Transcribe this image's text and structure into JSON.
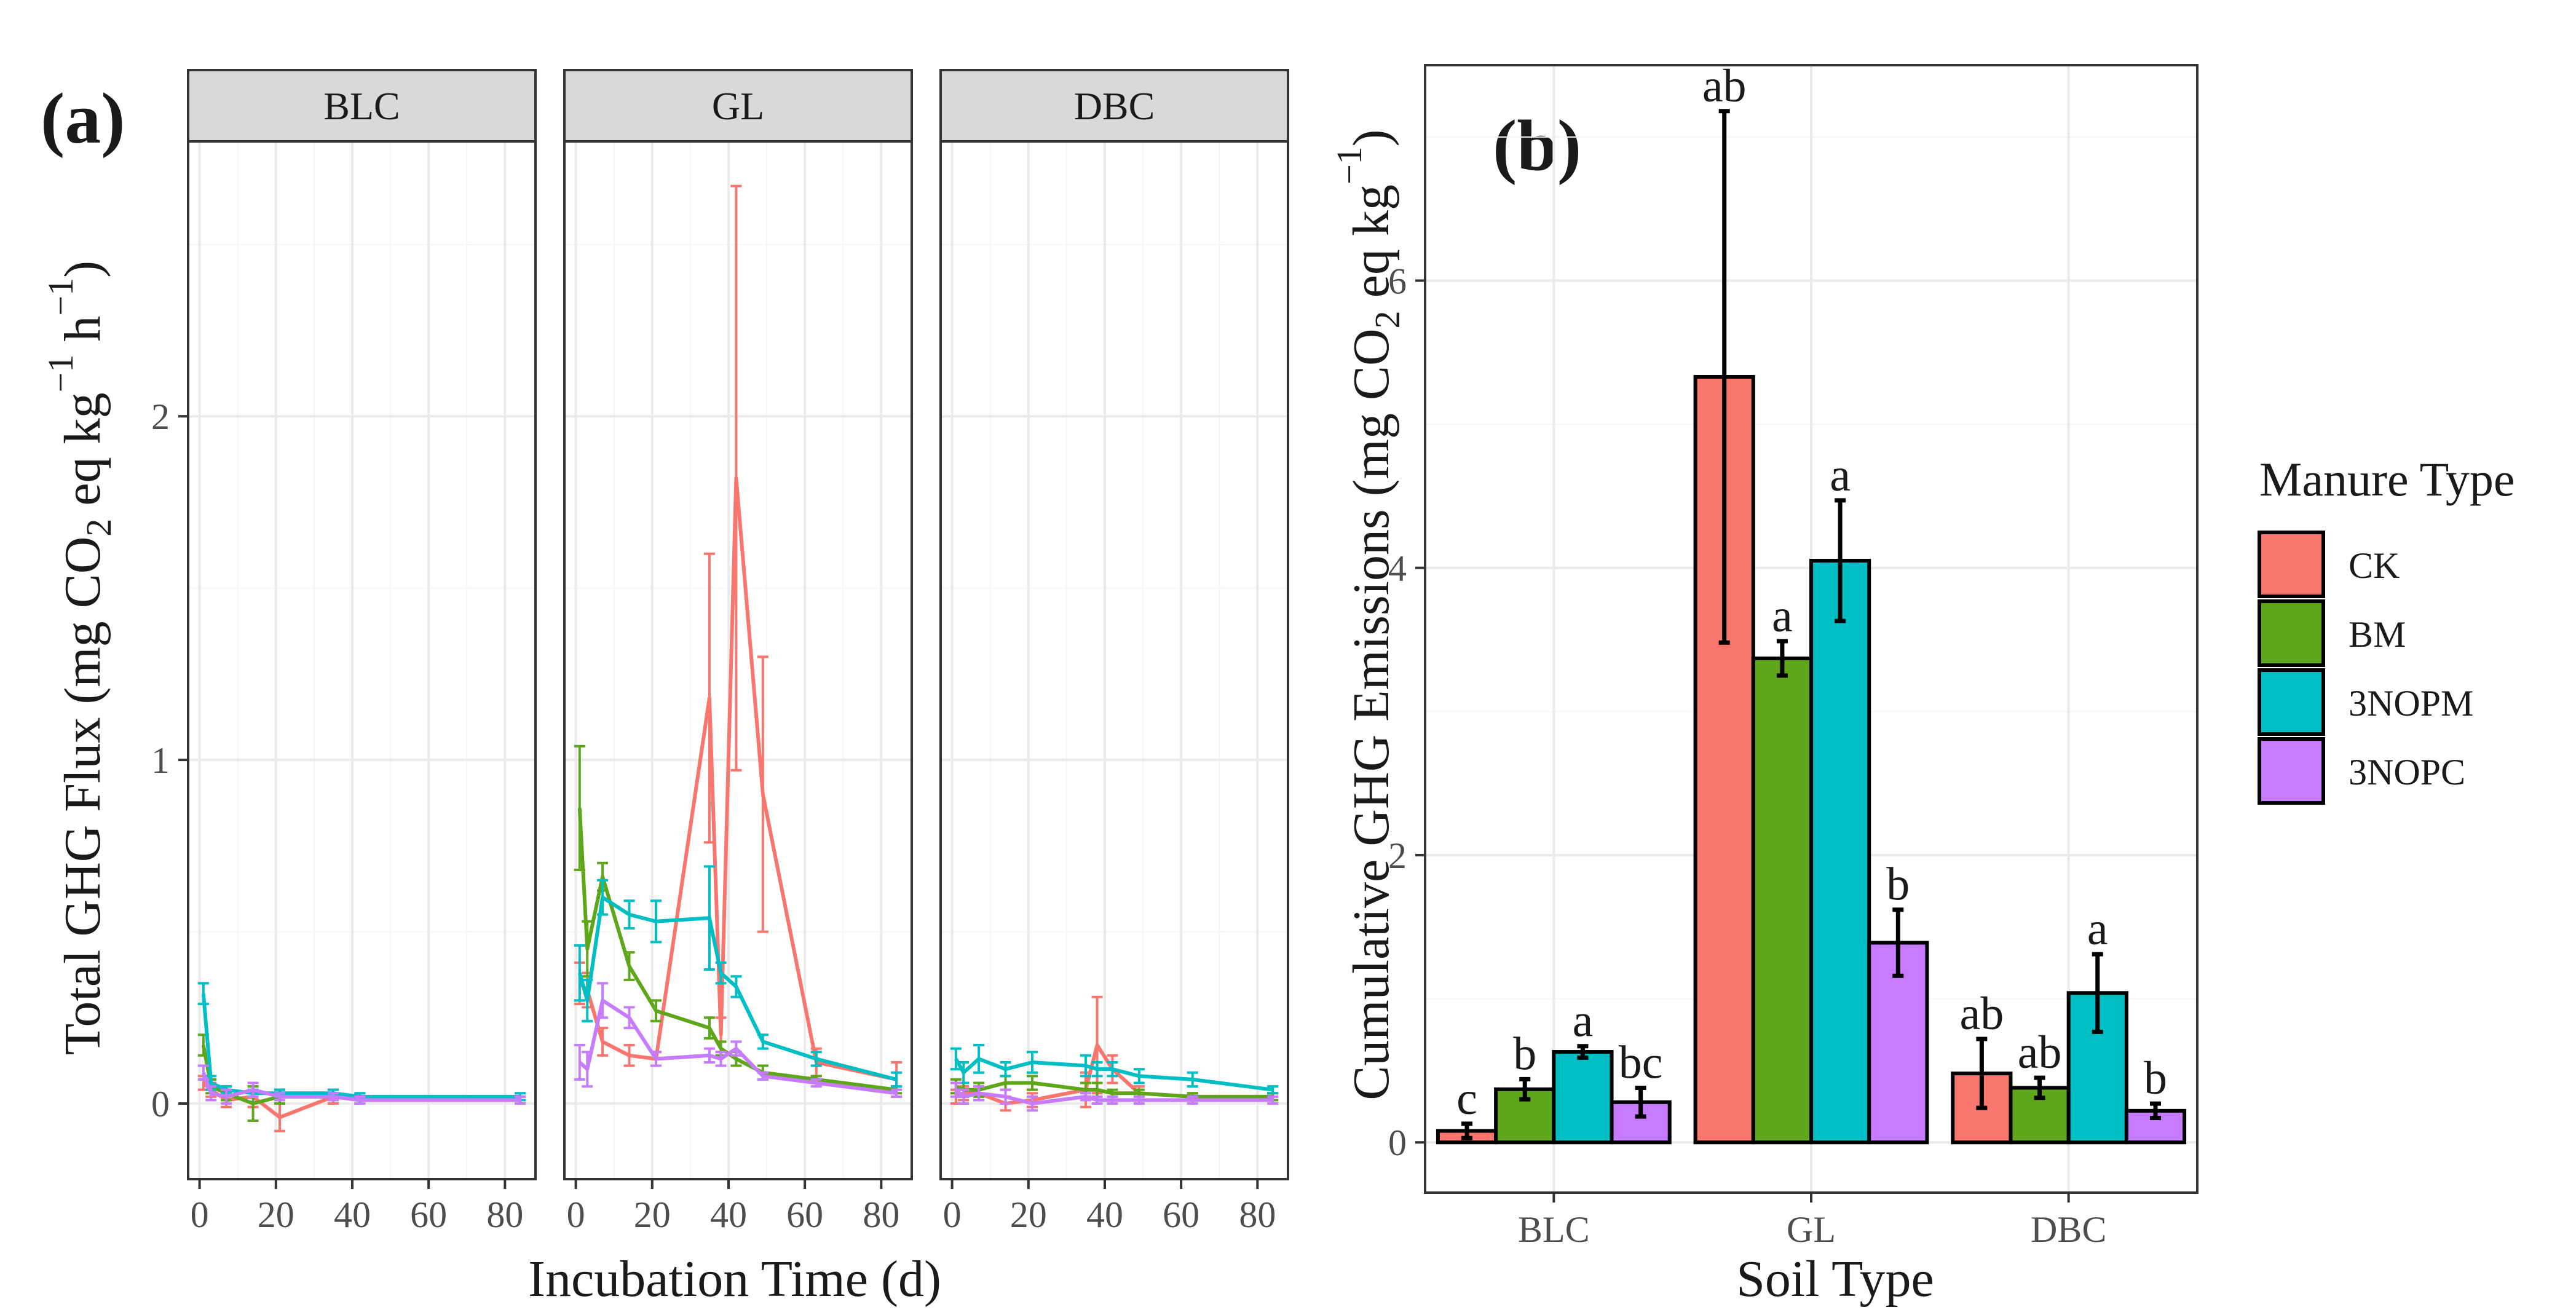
{
  "figure": {
    "panel_a_label": "(a)",
    "panel_b_label": "(b)"
  },
  "colors": {
    "CK": "#f8766d",
    "BM": "#5ea61a",
    "3NOPM": "#00bfc4",
    "3NOPC": "#c77cff"
  },
  "chart_data": [
    {
      "type": "line",
      "panel": "(a)",
      "title": "",
      "xlabel": "Incubation Time (d)",
      "ylabel_parts": [
        "Total GHG Flux (mg CO",
        "2",
        " eq kg",
        "−1",
        " h",
        "−1",
        ")"
      ],
      "xlim": [
        -3,
        88
      ],
      "ylim": [
        -0.22,
        2.8
      ],
      "x_ticks": [
        0,
        20,
        40,
        60,
        80
      ],
      "y_ticks": [
        0,
        1,
        2
      ],
      "facets": [
        "BLC",
        "GL",
        "DBC"
      ],
      "series_names": [
        "CK",
        "BM",
        "3NOPM",
        "3NOPC"
      ],
      "facet_data": {
        "BLC": {
          "CK": {
            "x": [
              1,
              3,
              7,
              14,
              21,
              35,
              42,
              84
            ],
            "y": [
              0.06,
              0.04,
              0.01,
              0.02,
              -0.04,
              0.02,
              0.01,
              0.01
            ],
            "err": [
              0.02,
              0.02,
              0.02,
              0.03,
              0.04,
              0.02,
              0.01,
              0.01
            ]
          },
          "BM": {
            "x": [
              1,
              3,
              7,
              14,
              21,
              35,
              42,
              84
            ],
            "y": [
              0.17,
              0.05,
              0.03,
              0.0,
              0.02,
              0.02,
              0.01,
              0.01
            ],
            "err": [
              0.03,
              0.02,
              0.02,
              0.05,
              0.02,
              0.01,
              0.01,
              0.01
            ]
          },
          "3NOPM": {
            "x": [
              1,
              3,
              7,
              14,
              21,
              35,
              42,
              84
            ],
            "y": [
              0.32,
              0.06,
              0.04,
              0.03,
              0.03,
              0.03,
              0.02,
              0.02
            ],
            "err": [
              0.03,
              0.02,
              0.01,
              0.01,
              0.01,
              0.01,
              0.01,
              0.01
            ]
          },
          "3NOPC": {
            "x": [
              1,
              3,
              7,
              14,
              21,
              35,
              42,
              84
            ],
            "y": [
              0.09,
              0.03,
              0.02,
              0.04,
              0.02,
              0.02,
              0.01,
              0.01
            ],
            "err": [
              0.02,
              0.02,
              0.02,
              0.02,
              0.01,
              0.01,
              0.01,
              0.01
            ]
          }
        },
        "GL": {
          "CK": {
            "x": [
              1,
              3,
              7,
              14,
              21,
              35,
              38,
              42,
              49,
              63,
              84
            ],
            "y": [
              0.35,
              0.33,
              0.18,
              0.14,
              0.13,
              1.18,
              0.2,
              1.82,
              0.9,
              0.12,
              0.07
            ],
            "err": [
              0.06,
              0.05,
              0.04,
              0.03,
              0.02,
              0.42,
              0.05,
              0.85,
              0.4,
              0.04,
              0.05
            ]
          },
          "BM": {
            "x": [
              1,
              3,
              7,
              14,
              21,
              35,
              38,
              42,
              49,
              63,
              84
            ],
            "y": [
              0.86,
              0.45,
              0.66,
              0.4,
              0.27,
              0.22,
              0.16,
              0.13,
              0.09,
              0.07,
              0.04
            ],
            "err": [
              0.18,
              0.08,
              0.04,
              0.04,
              0.03,
              0.03,
              0.02,
              0.02,
              0.02,
              0.01,
              0.01
            ]
          },
          "3NOPM": {
            "x": [
              1,
              3,
              7,
              14,
              21,
              35,
              38,
              42,
              49,
              63,
              84
            ],
            "y": [
              0.38,
              0.3,
              0.6,
              0.55,
              0.53,
              0.54,
              0.38,
              0.34,
              0.18,
              0.13,
              0.07
            ],
            "err": [
              0.08,
              0.06,
              0.05,
              0.04,
              0.06,
              0.15,
              0.03,
              0.03,
              0.02,
              0.02,
              0.02
            ]
          },
          "3NOPC": {
            "x": [
              1,
              3,
              7,
              14,
              21,
              35,
              38,
              42,
              49,
              63,
              84
            ],
            "y": [
              0.12,
              0.1,
              0.3,
              0.25,
              0.13,
              0.14,
              0.13,
              0.16,
              0.08,
              0.06,
              0.03
            ],
            "err": [
              0.05,
              0.05,
              0.05,
              0.03,
              0.02,
              0.02,
              0.02,
              0.02,
              0.01,
              0.01,
              0.01
            ]
          }
        },
        "DBC": {
          "CK": {
            "x": [
              1,
              3,
              7,
              14,
              21,
              35,
              38,
              42,
              49,
              63,
              84
            ],
            "y": [
              0.02,
              0.03,
              0.03,
              0.0,
              0.01,
              0.04,
              0.17,
              0.1,
              0.03,
              0.02,
              0.02
            ],
            "err": [
              0.02,
              0.02,
              0.02,
              0.02,
              0.02,
              0.05,
              0.14,
              0.04,
              0.02,
              0.01,
              0.01
            ]
          },
          "BM": {
            "x": [
              1,
              3,
              7,
              14,
              21,
              35,
              38,
              42,
              49,
              63,
              84
            ],
            "y": [
              0.05,
              0.04,
              0.04,
              0.06,
              0.06,
              0.04,
              0.04,
              0.03,
              0.03,
              0.02,
              0.02
            ],
            "err": [
              0.02,
              0.02,
              0.02,
              0.02,
              0.02,
              0.02,
              0.02,
              0.01,
              0.01,
              0.01,
              0.01
            ]
          },
          "3NOPM": {
            "x": [
              1,
              3,
              7,
              14,
              21,
              35,
              38,
              42,
              49,
              63,
              84
            ],
            "y": [
              0.13,
              0.09,
              0.13,
              0.1,
              0.12,
              0.11,
              0.1,
              0.1,
              0.08,
              0.07,
              0.04
            ],
            "err": [
              0.03,
              0.03,
              0.04,
              0.02,
              0.03,
              0.03,
              0.02,
              0.02,
              0.02,
              0.02,
              0.01
            ]
          },
          "3NOPC": {
            "x": [
              1,
              3,
              7,
              14,
              21,
              35,
              38,
              42,
              49,
              63,
              84
            ],
            "y": [
              0.04,
              0.02,
              0.03,
              0.02,
              0.0,
              0.02,
              0.01,
              0.01,
              0.01,
              0.01,
              0.01
            ],
            "err": [
              0.02,
              0.02,
              0.02,
              0.02,
              0.02,
              0.01,
              0.01,
              0.01,
              0.01,
              0.01,
              0.01
            ]
          }
        }
      }
    },
    {
      "type": "bar",
      "panel": "(b)",
      "title": "",
      "xlabel": "Soil Type",
      "ylabel_parts": [
        "Cumulative GHG Emissions (mg CO",
        "2",
        " eq kg",
        "−1",
        ")"
      ],
      "categories": [
        "BLC",
        "GL",
        "DBC"
      ],
      "ylim": [
        -0.35,
        7.5
      ],
      "y_ticks": [
        0,
        2,
        4,
        6
      ],
      "series": [
        {
          "name": "CK",
          "values": [
            0.08,
            5.33,
            0.48
          ],
          "err": [
            0.05,
            1.85,
            0.24
          ],
          "labels": [
            "c",
            "ab",
            "ab"
          ]
        },
        {
          "name": "BM",
          "values": [
            0.37,
            3.37,
            0.38
          ],
          "err": [
            0.07,
            0.12,
            0.07
          ],
          "labels": [
            "b",
            "a",
            "ab"
          ]
        },
        {
          "name": "3NOPM",
          "values": [
            0.63,
            4.05,
            1.04
          ],
          "err": [
            0.04,
            0.42,
            0.27
          ],
          "labels": [
            "a",
            "a",
            "a"
          ]
        },
        {
          "name": "3NOPC",
          "values": [
            0.28,
            1.39,
            0.22
          ],
          "err": [
            0.1,
            0.23,
            0.05
          ],
          "labels": [
            "bc",
            "b",
            "b"
          ]
        }
      ],
      "legend": {
        "title": "Manure Type",
        "entries": [
          "CK",
          "BM",
          "3NOPM",
          "3NOPC"
        ],
        "position": "right"
      }
    }
  ]
}
